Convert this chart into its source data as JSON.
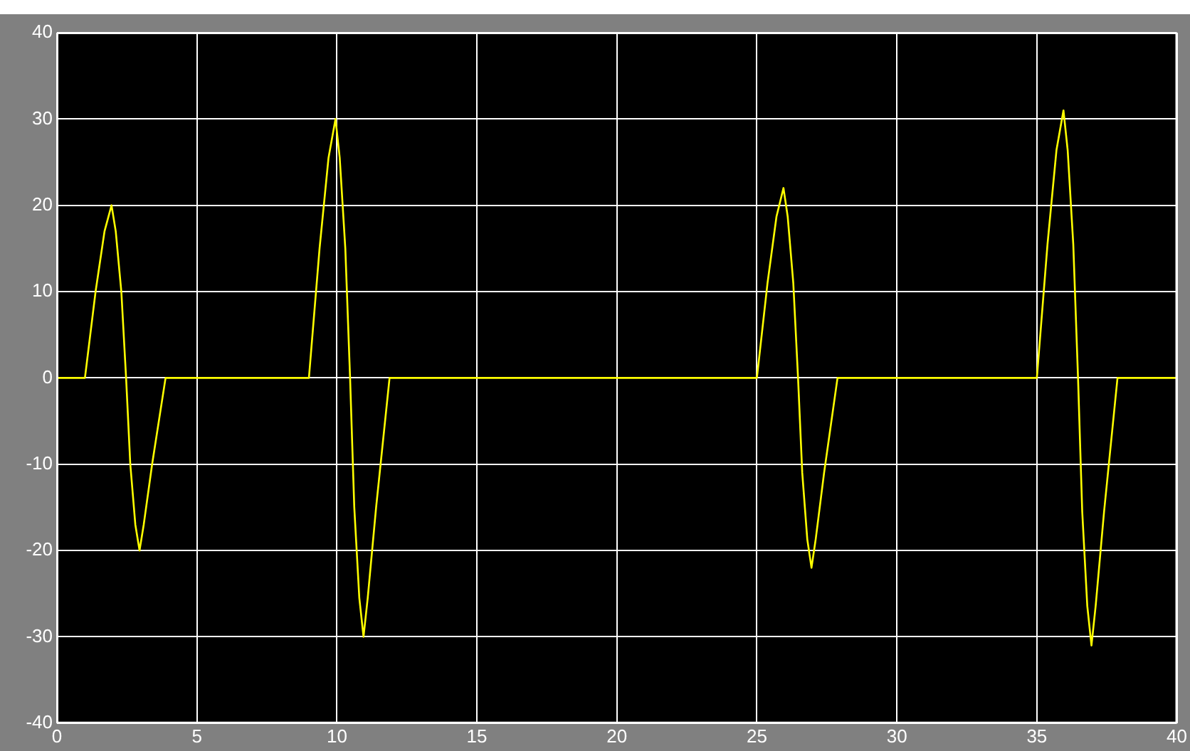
{
  "chart_data": {
    "type": "line",
    "x": [
      0,
      1,
      1.38,
      1.7,
      1.95,
      2.1,
      2.3,
      2.47,
      2.62,
      2.8,
      2.95,
      3.1,
      3.4,
      3.88,
      9,
      9.38,
      9.7,
      9.95,
      10.1,
      10.3,
      10.47,
      10.62,
      10.8,
      10.95,
      11.1,
      11.4,
      11.88,
      25,
      25.38,
      25.7,
      25.95,
      26.1,
      26.3,
      26.47,
      26.62,
      26.8,
      26.95,
      27.1,
      27.4,
      27.88,
      35,
      35.38,
      35.7,
      35.95,
      36.1,
      36.3,
      36.47,
      36.62,
      36.8,
      36.95,
      37.1,
      37.4,
      37.88,
      40
    ],
    "series": [
      {
        "color": "#ffff00",
        "values": [
          0,
          0,
          10,
          17,
          20,
          17,
          10,
          0,
          -10,
          -17,
          -20,
          -17,
          -10,
          0,
          0,
          15,
          25.5,
          30,
          25.5,
          15,
          0,
          -15,
          -25.5,
          -30,
          -25.5,
          -15,
          0,
          0,
          11,
          18.7,
          22,
          18.7,
          11,
          0,
          -11,
          -18.7,
          -22,
          -18.7,
          -11,
          0,
          0,
          15.5,
          26.4,
          31,
          26.4,
          15.5,
          0,
          -15.5,
          -26.4,
          -31,
          -26.4,
          -15.5,
          0,
          0
        ]
      }
    ],
    "xlim": [
      0,
      40
    ],
    "xticks": [
      0,
      5,
      10,
      15,
      20,
      25,
      30,
      35,
      40
    ],
    "ylim": [
      -40,
      40
    ],
    "yticks": [
      -40,
      -30,
      -20,
      -10,
      0,
      10,
      20,
      30,
      40
    ],
    "grid": true,
    "legend": false,
    "marker": "none",
    "line_style": "solid"
  }
}
